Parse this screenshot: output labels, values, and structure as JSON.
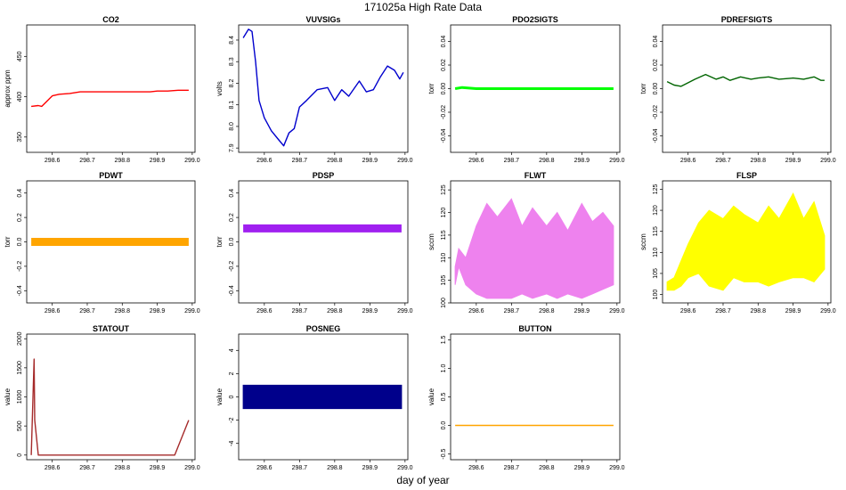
{
  "figure": {
    "title": "171025a   High Rate Data",
    "xlabel": "day of year",
    "x_ticks": [
      298.6,
      298.7,
      298.8,
      298.9,
      299.0
    ],
    "xlim": [
      298.527,
      299.008
    ]
  },
  "chart_data": [
    {
      "id": "co2",
      "title": "CO2",
      "type": "line",
      "ylabel": "approx ppm",
      "color": "#ff0000",
      "ylim": [
        331,
        489
      ],
      "yticks": [
        350,
        400,
        450
      ],
      "x": [
        298.54,
        298.56,
        298.57,
        298.6,
        298.62,
        298.65,
        298.68,
        298.7,
        298.72,
        298.75,
        298.8,
        298.85,
        298.88,
        298.9,
        298.93,
        298.96,
        298.99
      ],
      "values": [
        388,
        389,
        388,
        401,
        403,
        404,
        406,
        406,
        406,
        406,
        406,
        406,
        406,
        407,
        407,
        408,
        408
      ]
    },
    {
      "id": "vuvsigs",
      "title": "VUVSIGs",
      "type": "line",
      "ylabel": "volts",
      "color": "#0000cd",
      "ylim": [
        7.88,
        8.47
      ],
      "yticks": [
        7.9,
        8.0,
        8.1,
        8.2,
        8.3,
        8.4
      ],
      "x": [
        298.54,
        298.555,
        298.565,
        298.575,
        298.585,
        298.6,
        298.62,
        298.64,
        298.655,
        298.67,
        298.685,
        298.7,
        298.72,
        298.75,
        298.78,
        298.8,
        298.82,
        298.84,
        298.87,
        298.89,
        298.91,
        298.93,
        298.95,
        298.97,
        298.985,
        298.995
      ],
      "values": [
        8.41,
        8.45,
        8.44,
        8.3,
        8.12,
        8.04,
        7.98,
        7.94,
        7.91,
        7.97,
        7.99,
        8.09,
        8.12,
        8.17,
        8.18,
        8.12,
        8.17,
        8.14,
        8.21,
        8.16,
        8.17,
        8.23,
        8.28,
        8.26,
        8.22,
        8.25
      ]
    },
    {
      "id": "pdo2sigts",
      "title": "PDO2SIGTS",
      "type": "line",
      "ylabel": "torr",
      "color": "#00ff00",
      "ylim": [
        -0.054,
        0.054
      ],
      "yticks": [
        -0.04,
        -0.02,
        0.0,
        0.02,
        0.04
      ],
      "x": [
        298.54,
        298.56,
        298.6,
        298.65,
        298.7,
        298.75,
        298.8,
        298.85,
        298.9,
        298.95,
        298.99
      ],
      "values": [
        0.0,
        0.001,
        0.0,
        0.0,
        0.0,
        0.0,
        0.0,
        0.0,
        0.0,
        0.0,
        0.0
      ]
    },
    {
      "id": "pdrefsigts",
      "title": "PDREFSIGTS",
      "type": "line",
      "ylabel": "torr",
      "color": "#006400",
      "ylim": [
        -0.054,
        0.054
      ],
      "yticks": [
        -0.04,
        -0.02,
        0.0,
        0.02,
        0.04
      ],
      "x": [
        298.54,
        298.56,
        298.58,
        298.6,
        298.62,
        298.65,
        298.68,
        298.7,
        298.72,
        298.75,
        298.78,
        298.8,
        298.83,
        298.86,
        298.9,
        298.93,
        298.96,
        298.98,
        298.99
      ],
      "values": [
        0.006,
        0.003,
        0.002,
        0.005,
        0.008,
        0.012,
        0.008,
        0.01,
        0.007,
        0.01,
        0.008,
        0.009,
        0.01,
        0.008,
        0.009,
        0.008,
        0.01,
        0.007,
        0.007
      ]
    },
    {
      "id": "pdwt",
      "title": "PDWT",
      "type": "line",
      "ylabel": "torr",
      "color": "#ffa500",
      "ylim": [
        -0.5,
        0.5
      ],
      "yticks": [
        -0.4,
        -0.2,
        0.0,
        0.2,
        0.4
      ],
      "x": [
        298.54,
        298.6,
        298.7,
        298.8,
        298.9,
        298.99
      ],
      "values": [
        0.0,
        0.0,
        0.0,
        0.0,
        0.0,
        0.0
      ]
    },
    {
      "id": "pdsp",
      "title": "PDSP",
      "type": "line",
      "ylabel": "torr",
      "color": "#a020f0",
      "ylim": [
        -0.5,
        0.5
      ],
      "yticks": [
        -0.4,
        -0.2,
        0.0,
        0.2,
        0.4
      ],
      "x": [
        298.54,
        298.6,
        298.7,
        298.8,
        298.9,
        298.99
      ],
      "values": [
        0.11,
        0.11,
        0.11,
        0.11,
        0.11,
        0.11
      ]
    },
    {
      "id": "flwt",
      "title": "FLWT",
      "type": "area",
      "ylabel": "sccm",
      "color": "#ee82ee",
      "ylim": [
        100,
        127
      ],
      "yticks": [
        100,
        105,
        110,
        115,
        120,
        125
      ],
      "x": [
        298.54,
        298.55,
        298.57,
        298.6,
        298.63,
        298.66,
        298.7,
        298.73,
        298.76,
        298.8,
        298.83,
        298.86,
        298.9,
        298.93,
        298.96,
        298.99
      ],
      "upper": [
        108,
        112,
        110,
        117,
        122,
        119,
        123,
        117,
        121,
        117,
        120,
        116,
        122,
        118,
        120,
        117
      ],
      "lower": [
        104,
        108,
        104,
        102,
        101,
        101,
        101,
        102,
        101,
        102,
        101,
        102,
        101,
        102,
        103,
        104
      ]
    },
    {
      "id": "flsp",
      "title": "FLSP",
      "type": "area",
      "ylabel": "sccm",
      "color": "#ffff00",
      "ylim": [
        98,
        127
      ],
      "yticks": [
        100,
        105,
        110,
        115,
        120,
        125
      ],
      "x": [
        298.54,
        298.56,
        298.58,
        298.6,
        298.63,
        298.66,
        298.7,
        298.73,
        298.76,
        298.8,
        298.83,
        298.86,
        298.9,
        298.93,
        298.96,
        298.99
      ],
      "upper": [
        103,
        104,
        108,
        112,
        117,
        120,
        118,
        121,
        119,
        117,
        121,
        118,
        124,
        118,
        122,
        114
      ],
      "lower": [
        101,
        101,
        102,
        104,
        105,
        102,
        101,
        104,
        103,
        103,
        102,
        103,
        104,
        104,
        103,
        106
      ]
    },
    {
      "id": "statout",
      "title": "STATOUT",
      "type": "line",
      "ylabel": "value",
      "color": "#a52a2a",
      "ylim": [
        -80,
        2080
      ],
      "yticks": [
        0,
        500,
        1000,
        1500,
        2000
      ],
      "x": [
        298.54,
        298.548,
        298.55,
        298.56,
        298.6,
        298.65,
        298.7,
        298.75,
        298.8,
        298.85,
        298.9,
        298.95,
        298.99
      ],
      "values": [
        0,
        1650,
        600,
        0,
        0,
        0,
        0,
        0,
        0,
        0,
        0,
        0,
        600
      ]
    },
    {
      "id": "posneg",
      "title": "POSNEG",
      "type": "area",
      "ylabel": "value",
      "color": "#00008b",
      "ylim": [
        -5.4,
        5.4
      ],
      "yticks": [
        -4,
        -2,
        0,
        2,
        4
      ],
      "x": [
        298.54,
        298.99
      ],
      "upper": [
        1,
        1
      ],
      "lower": [
        -1,
        -1
      ]
    },
    {
      "id": "button",
      "title": "BUTTON",
      "type": "line",
      "ylabel": "value",
      "color": "#ffa500",
      "ylim": [
        -0.6,
        1.6
      ],
      "yticks": [
        -0.5,
        0.0,
        0.5,
        1.0,
        1.5
      ],
      "x": [
        298.54,
        298.99
      ],
      "values": [
        0,
        0
      ]
    }
  ]
}
